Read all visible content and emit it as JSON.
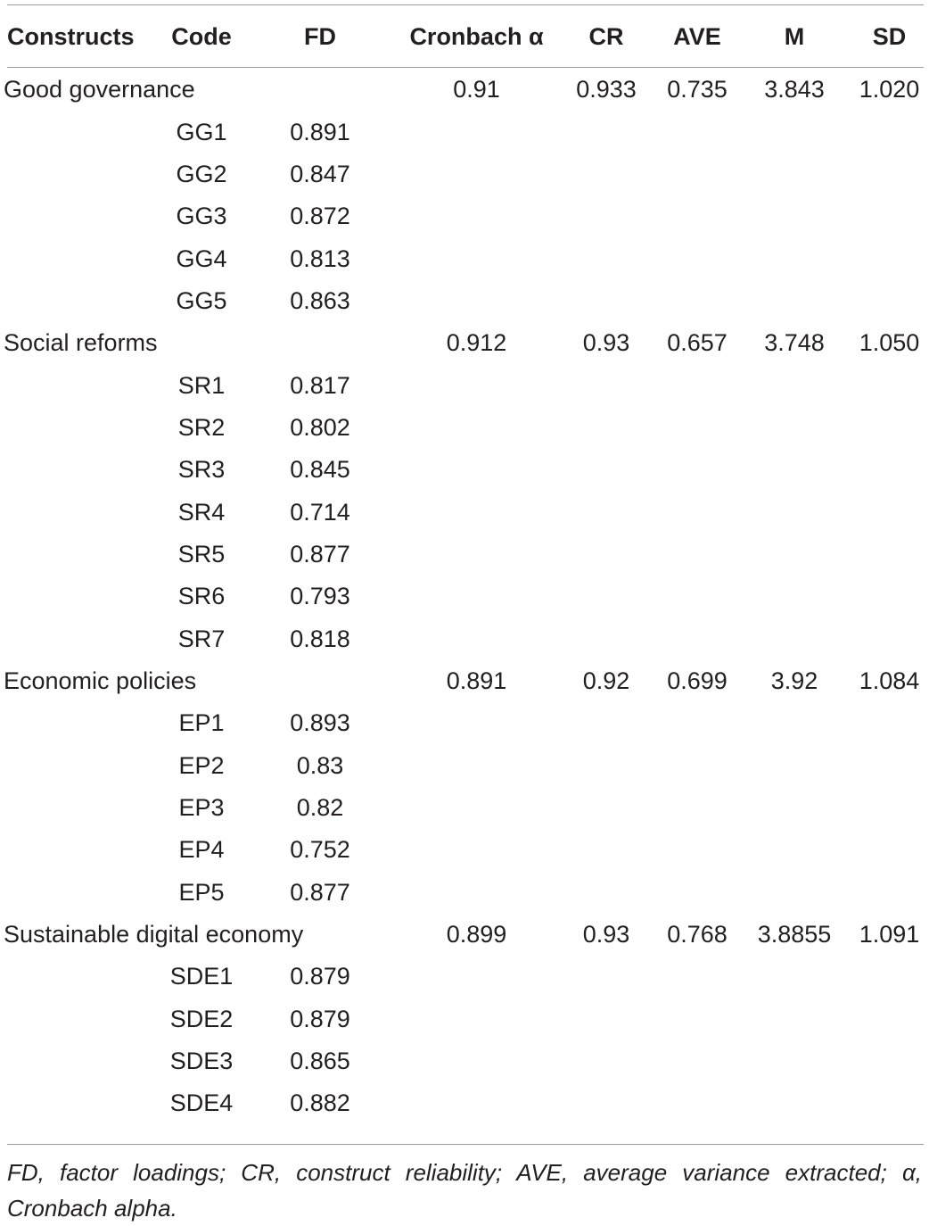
{
  "table": {
    "headers": {
      "constructs": "Constructs",
      "code": "Code",
      "fd": "FD",
      "cronbach": "Cronbach α",
      "cr": "CR",
      "ave": "AVE",
      "m": "M",
      "sd": "SD"
    },
    "rows": [
      {
        "construct": "Good governance",
        "code": "",
        "fd": "",
        "cronbach": "0.91",
        "cr": "0.933",
        "ave": "0.735",
        "m": "3.843",
        "sd": "1.020"
      },
      {
        "construct": "",
        "code": "GG1",
        "fd": "0.891",
        "cronbach": "",
        "cr": "",
        "ave": "",
        "m": "",
        "sd": ""
      },
      {
        "construct": "",
        "code": "GG2",
        "fd": "0.847",
        "cronbach": "",
        "cr": "",
        "ave": "",
        "m": "",
        "sd": ""
      },
      {
        "construct": "",
        "code": "GG3",
        "fd": "0.872",
        "cronbach": "",
        "cr": "",
        "ave": "",
        "m": "",
        "sd": ""
      },
      {
        "construct": "",
        "code": "GG4",
        "fd": "0.813",
        "cronbach": "",
        "cr": "",
        "ave": "",
        "m": "",
        "sd": ""
      },
      {
        "construct": "",
        "code": "GG5",
        "fd": "0.863",
        "cronbach": "",
        "cr": "",
        "ave": "",
        "m": "",
        "sd": ""
      },
      {
        "construct": "Social reforms",
        "code": "",
        "fd": "",
        "cronbach": "0.912",
        "cr": "0.93",
        "ave": "0.657",
        "m": "3.748",
        "sd": "1.050"
      },
      {
        "construct": "",
        "code": "SR1",
        "fd": "0.817",
        "cronbach": "",
        "cr": "",
        "ave": "",
        "m": "",
        "sd": ""
      },
      {
        "construct": "",
        "code": "SR2",
        "fd": "0.802",
        "cronbach": "",
        "cr": "",
        "ave": "",
        "m": "",
        "sd": ""
      },
      {
        "construct": "",
        "code": "SR3",
        "fd": "0.845",
        "cronbach": "",
        "cr": "",
        "ave": "",
        "m": "",
        "sd": ""
      },
      {
        "construct": "",
        "code": "SR4",
        "fd": "0.714",
        "cronbach": "",
        "cr": "",
        "ave": "",
        "m": "",
        "sd": ""
      },
      {
        "construct": "",
        "code": "SR5",
        "fd": "0.877",
        "cronbach": "",
        "cr": "",
        "ave": "",
        "m": "",
        "sd": ""
      },
      {
        "construct": "",
        "code": "SR6",
        "fd": "0.793",
        "cronbach": "",
        "cr": "",
        "ave": "",
        "m": "",
        "sd": ""
      },
      {
        "construct": "",
        "code": "SR7",
        "fd": "0.818",
        "cronbach": "",
        "cr": "",
        "ave": "",
        "m": "",
        "sd": ""
      },
      {
        "construct": "Economic policies",
        "code": "",
        "fd": "",
        "cronbach": "0.891",
        "cr": "0.92",
        "ave": "0.699",
        "m": "3.92",
        "sd": "1.084"
      },
      {
        "construct": "",
        "code": "EP1",
        "fd": "0.893",
        "cronbach": "",
        "cr": "",
        "ave": "",
        "m": "",
        "sd": ""
      },
      {
        "construct": "",
        "code": "EP2",
        "fd": "0.83",
        "cronbach": "",
        "cr": "",
        "ave": "",
        "m": "",
        "sd": ""
      },
      {
        "construct": "",
        "code": "EP3",
        "fd": "0.82",
        "cronbach": "",
        "cr": "",
        "ave": "",
        "m": "",
        "sd": ""
      },
      {
        "construct": "",
        "code": "EP4",
        "fd": "0.752",
        "cronbach": "",
        "cr": "",
        "ave": "",
        "m": "",
        "sd": ""
      },
      {
        "construct": "",
        "code": "EP5",
        "fd": "0.877",
        "cronbach": "",
        "cr": "",
        "ave": "",
        "m": "",
        "sd": ""
      },
      {
        "construct": "Sustainable digital economy",
        "code": "",
        "fd": "",
        "cronbach": "0.899",
        "cr": "0.93",
        "ave": "0.768",
        "m": "3.8855",
        "sd": "1.091"
      },
      {
        "construct": "",
        "code": "SDE1",
        "fd": "0.879",
        "cronbach": "",
        "cr": "",
        "ave": "",
        "m": "",
        "sd": ""
      },
      {
        "construct": "",
        "code": "SDE2",
        "fd": "0.879",
        "cronbach": "",
        "cr": "",
        "ave": "",
        "m": "",
        "sd": ""
      },
      {
        "construct": "",
        "code": "SDE3",
        "fd": "0.865",
        "cronbach": "",
        "cr": "",
        "ave": "",
        "m": "",
        "sd": ""
      },
      {
        "construct": "",
        "code": "SDE4",
        "fd": "0.882",
        "cronbach": "",
        "cr": "",
        "ave": "",
        "m": "",
        "sd": ""
      }
    ]
  },
  "footnote": "FD, factor loadings; CR, construct reliability; AVE, average variance extracted; α, Cronbach alpha."
}
